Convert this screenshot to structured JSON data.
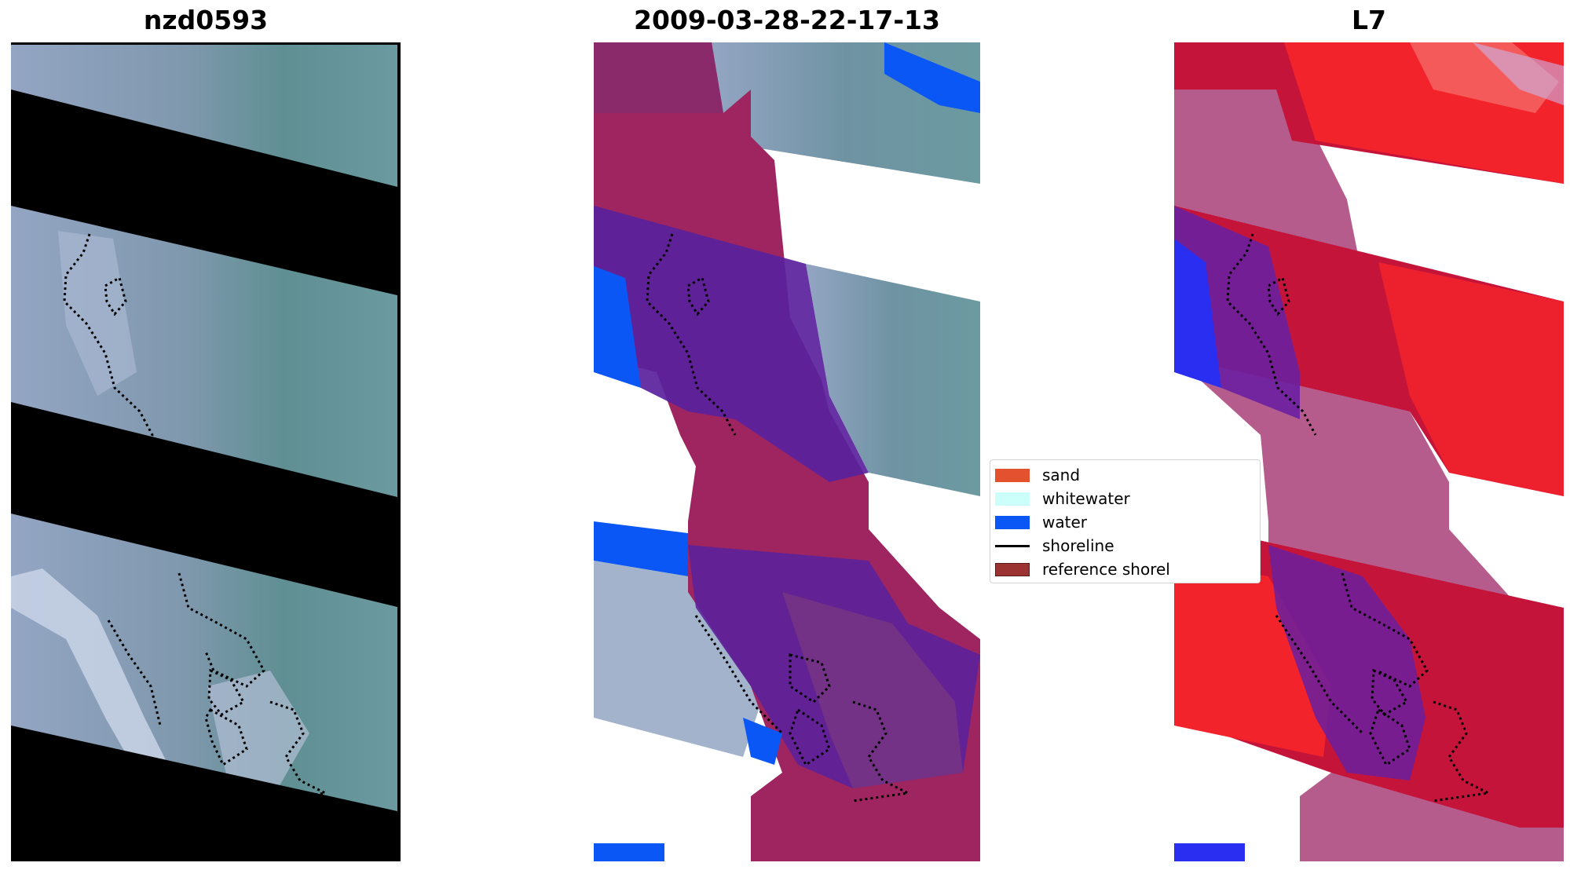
{
  "panels": [
    {
      "title": "nzd0593"
    },
    {
      "title": "2009-03-28-22-17-13"
    },
    {
      "title": "L7"
    }
  ],
  "legend": {
    "items": [
      {
        "label": "sand",
        "color": "#e4512f",
        "kind": "patch"
      },
      {
        "label": "whitewater",
        "color": "#ccfff9",
        "kind": "patch"
      },
      {
        "label": "water",
        "color": "#0b57f5",
        "kind": "patch"
      },
      {
        "label": "shoreline",
        "color": "#000000",
        "kind": "line"
      },
      {
        "label": "reference shorel",
        "color": "#9b3333",
        "kind": "patch"
      }
    ]
  },
  "colors": {
    "imagery_blue_grey": "#8ca0bf",
    "imagery_teal": "#5c8e92",
    "nodata_black": "#000000",
    "classified_magenta": "#9e2560",
    "classified_purple": "#5a219c",
    "water_blue": "#0b57f5",
    "index_red": "#f2232b",
    "index_crimson": "#c5143a",
    "index_pink": "#b65c8d",
    "index_blue": "#2a2ef0"
  }
}
